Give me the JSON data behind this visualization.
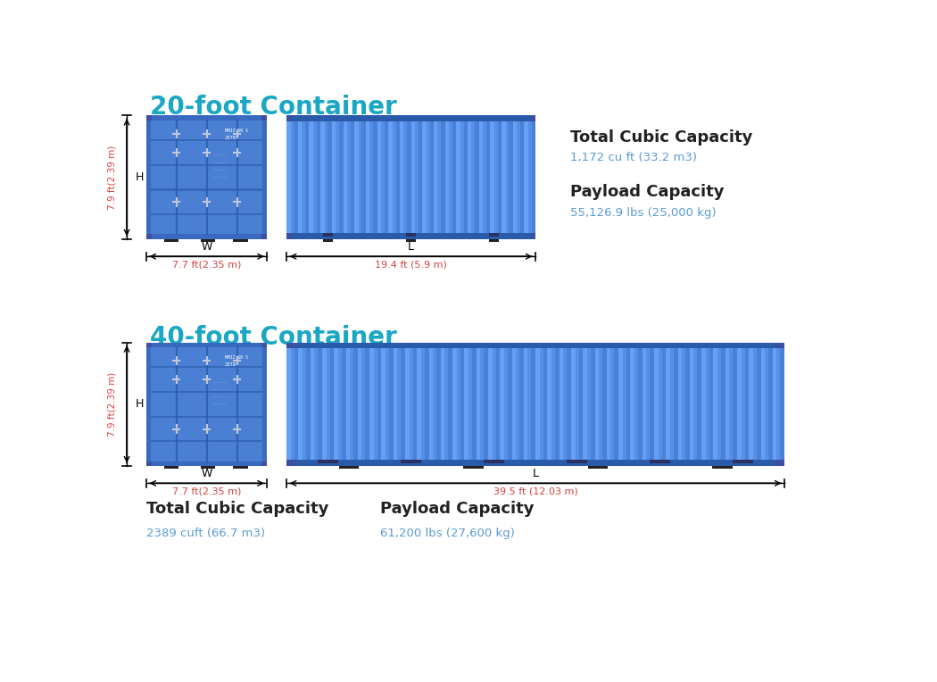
{
  "title_20": "20-foot Container",
  "title_40": "40-foot Container",
  "title_color": "#1aa7c4",
  "title_fontsize": 20,
  "bg_color": "#ffffff",
  "container_blue_main": "#4a7fd4",
  "container_blue_mid": "#5a8fe4",
  "container_blue_light": "#6aa0f0",
  "container_blue_dark": "#2a5aaa",
  "container_blue_shadow": "#3a6abf",
  "container_blue_stripe": "#7ab0ff",
  "dim_color_red": "#d94040",
  "dim_color_black": "#333333",
  "label_dark": "#222222",
  "label_blue": "#5b9bd5",
  "20ft": {
    "height_label": "7.9 ft(2.39 m)",
    "width_label": "7.7 ft(2.35 m)",
    "length_label": "19.4 ft (5.9 m)",
    "cubic_title": "Total Cubic Capacity",
    "cubic_value": "1,172 cu ft (33.2 m3)",
    "payload_title": "Payload Capacity",
    "payload_value": "55,126.9 lbs (25,000 kg)"
  },
  "40ft": {
    "height_label": "7.9 ft(2.39 m)",
    "width_label": "7.7 ft(2.35 m)",
    "length_label": "39.5 ft (12.03 m)",
    "cubic_title": "Total Cubic Capacity",
    "cubic_value": "2389 cuft (66.7 m3)",
    "payload_title": "Payload Capacity",
    "payload_value": "61,200 lbs (27,600 kg)"
  }
}
